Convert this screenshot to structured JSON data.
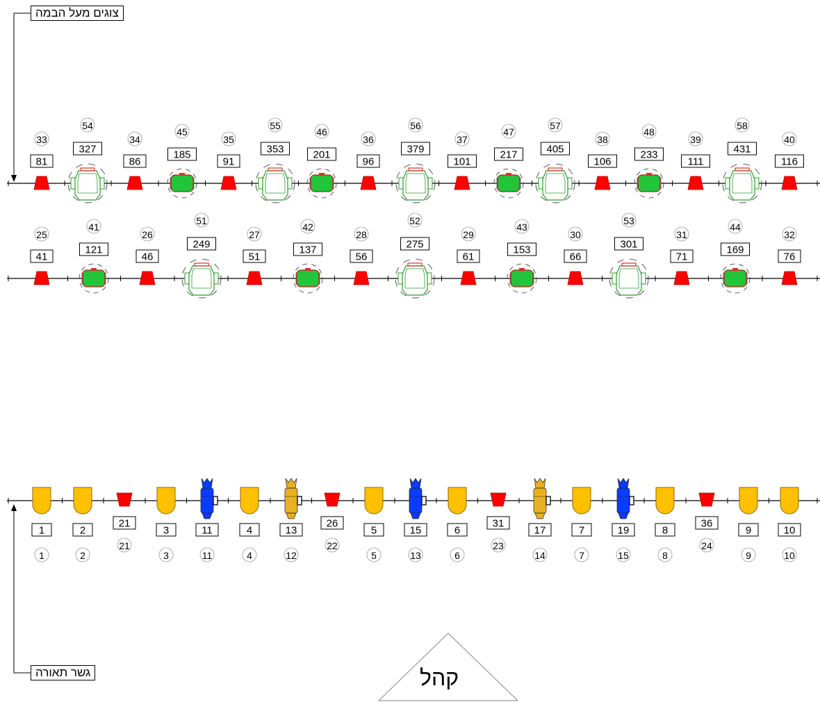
{
  "labels": {
    "top_pipe": "צוגים מעל הבמה",
    "front_truss": "גשר תאורה",
    "audience": "קהל"
  },
  "rows": [
    {
      "name": "upper-pipe-row-1",
      "fixtures": [
        {
          "type": "par",
          "channel": "81",
          "number": "33"
        },
        {
          "type": "moving-head",
          "channel": "327",
          "number": "54"
        },
        {
          "type": "par",
          "channel": "86",
          "number": "34"
        },
        {
          "type": "wash",
          "channel": "185",
          "number": "45"
        },
        {
          "type": "par",
          "channel": "91",
          "number": "35"
        },
        {
          "type": "moving-head",
          "channel": "353",
          "number": "55"
        },
        {
          "type": "wash",
          "channel": "201",
          "number": "46"
        },
        {
          "type": "par",
          "channel": "96",
          "number": "36"
        },
        {
          "type": "moving-head",
          "channel": "379",
          "number": "56"
        },
        {
          "type": "par",
          "channel": "101",
          "number": "37"
        },
        {
          "type": "wash",
          "channel": "217",
          "number": "47"
        },
        {
          "type": "moving-head",
          "channel": "405",
          "number": "57"
        },
        {
          "type": "par",
          "channel": "106",
          "number": "38"
        },
        {
          "type": "wash",
          "channel": "233",
          "number": "48"
        },
        {
          "type": "par",
          "channel": "111",
          "number": "39"
        },
        {
          "type": "moving-head",
          "channel": "431",
          "number": "58"
        },
        {
          "type": "par",
          "channel": "116",
          "number": "40"
        }
      ]
    },
    {
      "name": "upper-pipe-row-2",
      "fixtures": [
        {
          "type": "par",
          "channel": "41",
          "number": "25"
        },
        {
          "type": "wash",
          "channel": "121",
          "number": "41"
        },
        {
          "type": "par",
          "channel": "46",
          "number": "26"
        },
        {
          "type": "moving-head",
          "channel": "249",
          "number": "51"
        },
        {
          "type": "par",
          "channel": "51",
          "number": "27"
        },
        {
          "type": "wash",
          "channel": "137",
          "number": "42"
        },
        {
          "type": "par",
          "channel": "56",
          "number": "28"
        },
        {
          "type": "moving-head",
          "channel": "275",
          "number": "52"
        },
        {
          "type": "par",
          "channel": "61",
          "number": "29"
        },
        {
          "type": "wash",
          "channel": "153",
          "number": "43"
        },
        {
          "type": "par",
          "channel": "66",
          "number": "30"
        },
        {
          "type": "moving-head",
          "channel": "301",
          "number": "53"
        },
        {
          "type": "par",
          "channel": "71",
          "number": "31"
        },
        {
          "type": "wash",
          "channel": "169",
          "number": "44"
        },
        {
          "type": "par",
          "channel": "76",
          "number": "32"
        }
      ]
    },
    {
      "name": "front-truss-row",
      "fixtures": [
        {
          "type": "fresnel",
          "channel": "1",
          "number": "1"
        },
        {
          "type": "fresnel",
          "channel": "2",
          "number": "2"
        },
        {
          "type": "par",
          "channel": "21",
          "number": "21"
        },
        {
          "type": "fresnel",
          "channel": "3",
          "number": "3"
        },
        {
          "type": "profile-blue",
          "channel": "11",
          "number": "11"
        },
        {
          "type": "fresnel",
          "channel": "4",
          "number": "4"
        },
        {
          "type": "profile-amber",
          "channel": "13",
          "number": "12"
        },
        {
          "type": "par",
          "channel": "26",
          "number": "22"
        },
        {
          "type": "fresnel",
          "channel": "5",
          "number": "5"
        },
        {
          "type": "profile-blue",
          "channel": "15",
          "number": "13"
        },
        {
          "type": "fresnel",
          "channel": "6",
          "number": "6"
        },
        {
          "type": "par",
          "channel": "31",
          "number": "23"
        },
        {
          "type": "profile-amber",
          "channel": "17",
          "number": "14"
        },
        {
          "type": "fresnel",
          "channel": "7",
          "number": "7"
        },
        {
          "type": "profile-blue",
          "channel": "19",
          "number": "15"
        },
        {
          "type": "fresnel",
          "channel": "8",
          "number": "8"
        },
        {
          "type": "par",
          "channel": "36",
          "number": "24"
        },
        {
          "type": "fresnel",
          "channel": "9",
          "number": "9"
        },
        {
          "type": "fresnel",
          "channel": "10",
          "number": "10"
        }
      ]
    }
  ],
  "colors": {
    "par_red": "#ff0000",
    "wash_green": "#22c43a",
    "fresnel_amber": "#ffc000",
    "profile_blue": "#0a3cff",
    "profile_amber": "#e8b023",
    "moving_head_outline": "#2a9a2a",
    "line": "#000000"
  }
}
